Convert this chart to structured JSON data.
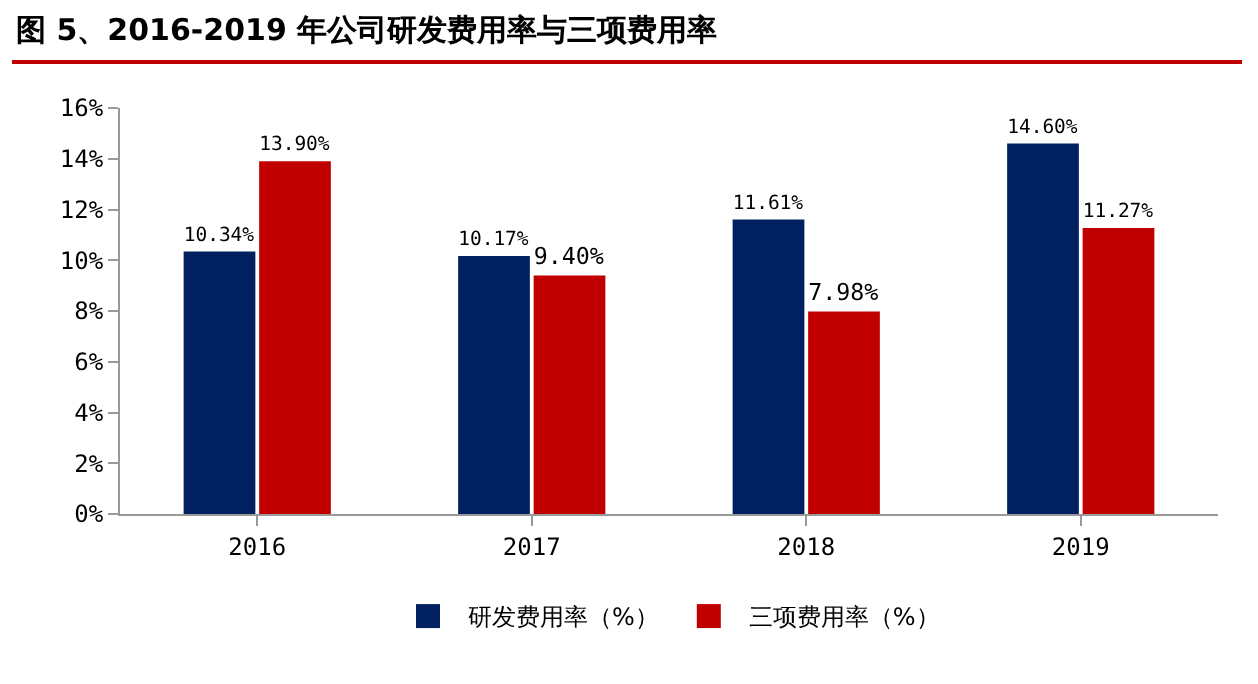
{
  "chart_data": {
    "type": "bar",
    "title": "图 5、2016-2019 年公司研发费用率与三项费用率",
    "categories": [
      "2016",
      "2017",
      "2018",
      "2019"
    ],
    "series": [
      {
        "name": "研发费用率（%）",
        "color": "#002060",
        "values": [
          10.34,
          10.17,
          11.61,
          14.6
        ],
        "value_labels": [
          "10.34%",
          "10.17%",
          "11.61%",
          "14.60%"
        ]
      },
      {
        "name": "三项费用率（%）",
        "color": "#c00000",
        "values": [
          13.9,
          9.4,
          7.98,
          11.27
        ],
        "value_labels": [
          "13.90%",
          "9.40%",
          "7.98%",
          "11.27%"
        ]
      }
    ],
    "ylim": [
      0,
      16
    ],
    "yticks": [
      {
        "value": 0,
        "label": "0%"
      },
      {
        "value": 2,
        "label": "2%"
      },
      {
        "value": 4,
        "label": "4%"
      },
      {
        "value": 6,
        "label": "6%"
      },
      {
        "value": 8,
        "label": "8%"
      },
      {
        "value": 10,
        "label": "10%"
      },
      {
        "value": 12,
        "label": "12%"
      },
      {
        "value": 14,
        "label": "14%"
      },
      {
        "value": 16,
        "label": "16%"
      }
    ],
    "grid": false,
    "legend": "bottom"
  }
}
